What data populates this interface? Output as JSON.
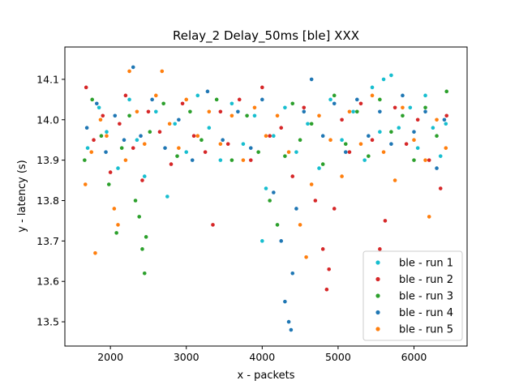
{
  "chart_data": {
    "type": "scatter",
    "title": "Relay_2 Delay_50ms [ble] XXX",
    "xlabel": "x - packets",
    "ylabel": "y - latency (s)",
    "xlim": [
      1400,
      6700
    ],
    "ylim": [
      13.44,
      14.18
    ],
    "xticks": [
      2000,
      3000,
      4000,
      5000,
      6000
    ],
    "yticks": [
      13.5,
      13.6,
      13.7,
      13.8,
      13.9,
      14.0,
      14.1
    ],
    "ytick_labels": [
      "13.5",
      "13.6",
      "13.7",
      "13.8",
      "13.9",
      "14.0",
      "14.1"
    ],
    "x_range": [
      1650,
      6450
    ],
    "legend_position": "lower right",
    "grid": false,
    "series": [
      {
        "name": "ble - run 1",
        "color": "#17becf",
        "points": [
          [
            1700,
            13.93
          ],
          [
            1850,
            14.03
          ],
          [
            1950,
            13.97
          ],
          [
            2100,
            13.88
          ],
          [
            2250,
            14.05
          ],
          [
            2350,
            13.95
          ],
          [
            2450,
            13.86
          ],
          [
            2600,
            14.02
          ],
          [
            2750,
            13.81
          ],
          [
            2850,
            13.99
          ],
          [
            3000,
            13.92
          ],
          [
            3150,
            14.06
          ],
          [
            3300,
            13.98
          ],
          [
            3450,
            13.9
          ],
          [
            3600,
            14.04
          ],
          [
            3750,
            13.94
          ],
          [
            3900,
            14.01
          ],
          [
            4000,
            13.7
          ],
          [
            4050,
            13.83
          ],
          [
            4150,
            13.96
          ],
          [
            4300,
            14.03
          ],
          [
            4450,
            13.92
          ],
          [
            4600,
            13.99
          ],
          [
            4750,
            13.88
          ],
          [
            4900,
            14.05
          ],
          [
            5050,
            13.95
          ],
          [
            5200,
            14.02
          ],
          [
            5350,
            13.9
          ],
          [
            5450,
            14.08
          ],
          [
            5550,
            13.97
          ],
          [
            5600,
            14.1
          ],
          [
            5700,
            14.11
          ],
          [
            5800,
            13.98
          ],
          [
            5950,
            14.03
          ],
          [
            6050,
            13.93
          ],
          [
            6150,
            14.06
          ],
          [
            6250,
            13.98
          ],
          [
            6350,
            13.91
          ],
          [
            6420,
            13.99
          ]
        ]
      },
      {
        "name": "ble - run 2",
        "color": "#d62728",
        "points": [
          [
            1680,
            14.08
          ],
          [
            1780,
            13.95
          ],
          [
            1900,
            14.01
          ],
          [
            2000,
            13.87
          ],
          [
            2120,
            13.99
          ],
          [
            2200,
            14.06
          ],
          [
            2300,
            13.93
          ],
          [
            2420,
            13.85
          ],
          [
            2500,
            14.02
          ],
          [
            2650,
            13.97
          ],
          [
            2800,
            13.89
          ],
          [
            2950,
            14.04
          ],
          [
            3100,
            13.96
          ],
          [
            3250,
            13.92
          ],
          [
            3350,
            13.74
          ],
          [
            3450,
            14.02
          ],
          [
            3550,
            13.94
          ],
          [
            3700,
            14.05
          ],
          [
            3850,
            13.9
          ],
          [
            4000,
            14.08
          ],
          [
            4100,
            13.96
          ],
          [
            4250,
            13.98
          ],
          [
            4400,
            13.86
          ],
          [
            4550,
            14.03
          ],
          [
            4700,
            13.8
          ],
          [
            4800,
            13.68
          ],
          [
            4850,
            13.58
          ],
          [
            4880,
            13.63
          ],
          [
            4950,
            13.78
          ],
          [
            5050,
            14.0
          ],
          [
            5150,
            13.92
          ],
          [
            5300,
            14.04
          ],
          [
            5450,
            13.95
          ],
          [
            5550,
            13.68
          ],
          [
            5620,
            13.75
          ],
          [
            5750,
            14.03
          ],
          [
            5900,
            13.94
          ],
          [
            6050,
            14.0
          ],
          [
            6200,
            13.9
          ],
          [
            6350,
            13.83
          ],
          [
            6430,
            14.01
          ]
        ]
      },
      {
        "name": "ble - run 3",
        "color": "#2ca02c",
        "points": [
          [
            1660,
            13.9
          ],
          [
            1760,
            14.05
          ],
          [
            1880,
            13.96
          ],
          [
            1980,
            13.84
          ],
          [
            2080,
            13.72
          ],
          [
            2150,
            13.93
          ],
          [
            2250,
            14.01
          ],
          [
            2330,
            13.8
          ],
          [
            2380,
            13.76
          ],
          [
            2420,
            13.68
          ],
          [
            2450,
            13.62
          ],
          [
            2470,
            13.71
          ],
          [
            2520,
            13.97
          ],
          [
            2700,
            14.04
          ],
          [
            2880,
            13.91
          ],
          [
            3050,
            14.02
          ],
          [
            3200,
            13.95
          ],
          [
            3400,
            14.05
          ],
          [
            3600,
            13.9
          ],
          [
            3800,
            14.01
          ],
          [
            3950,
            13.92
          ],
          [
            4100,
            13.8
          ],
          [
            4200,
            13.74
          ],
          [
            4300,
            13.91
          ],
          [
            4400,
            14.04
          ],
          [
            4500,
            13.95
          ],
          [
            4650,
            13.99
          ],
          [
            4800,
            13.89
          ],
          [
            4950,
            14.06
          ],
          [
            5100,
            13.94
          ],
          [
            5250,
            14.02
          ],
          [
            5400,
            13.91
          ],
          [
            5550,
            14.05
          ],
          [
            5700,
            13.97
          ],
          [
            5850,
            14.01
          ],
          [
            6000,
            13.9
          ],
          [
            6150,
            14.03
          ],
          [
            6300,
            13.96
          ],
          [
            6430,
            14.07
          ]
        ]
      },
      {
        "name": "ble - run 4",
        "color": "#1f77b4",
        "points": [
          [
            1690,
            13.98
          ],
          [
            1820,
            14.04
          ],
          [
            1940,
            13.92
          ],
          [
            2060,
            14.01
          ],
          [
            2180,
            13.95
          ],
          [
            2300,
            14.13
          ],
          [
            2400,
            13.96
          ],
          [
            2550,
            14.05
          ],
          [
            2720,
            13.93
          ],
          [
            2900,
            14.0
          ],
          [
            3080,
            13.9
          ],
          [
            3280,
            14.07
          ],
          [
            3480,
            13.95
          ],
          [
            3680,
            14.02
          ],
          [
            3850,
            13.93
          ],
          [
            4000,
            14.05
          ],
          [
            4150,
            13.82
          ],
          [
            4250,
            13.7
          ],
          [
            4300,
            13.55
          ],
          [
            4350,
            13.5
          ],
          [
            4380,
            13.48
          ],
          [
            4400,
            13.62
          ],
          [
            4450,
            13.78
          ],
          [
            4550,
            14.02
          ],
          [
            4650,
            14.1
          ],
          [
            4800,
            13.96
          ],
          [
            4950,
            14.04
          ],
          [
            5100,
            13.92
          ],
          [
            5250,
            14.05
          ],
          [
            5400,
            13.96
          ],
          [
            5550,
            14.02
          ],
          [
            5700,
            13.94
          ],
          [
            5850,
            14.06
          ],
          [
            6000,
            13.97
          ],
          [
            6150,
            14.02
          ],
          [
            6300,
            13.88
          ],
          [
            6400,
            14.0
          ]
        ]
      },
      {
        "name": "ble - run 5",
        "color": "#ff7f0e",
        "points": [
          [
            1670,
            13.84
          ],
          [
            1750,
            13.92
          ],
          [
            1800,
            13.67
          ],
          [
            1870,
            14.0
          ],
          [
            1950,
            13.96
          ],
          [
            2050,
            13.78
          ],
          [
            2100,
            13.74
          ],
          [
            2200,
            13.9
          ],
          [
            2250,
            14.12
          ],
          [
            2350,
            14.02
          ],
          [
            2450,
            13.94
          ],
          [
            2600,
            14.06
          ],
          [
            2680,
            14.12
          ],
          [
            2780,
            13.99
          ],
          [
            2900,
            13.93
          ],
          [
            3000,
            14.05
          ],
          [
            3150,
            13.96
          ],
          [
            3300,
            14.02
          ],
          [
            3450,
            13.94
          ],
          [
            3600,
            14.01
          ],
          [
            3750,
            13.9
          ],
          [
            3900,
            14.03
          ],
          [
            4050,
            13.96
          ],
          [
            4200,
            14.01
          ],
          [
            4350,
            13.92
          ],
          [
            4500,
            13.74
          ],
          [
            4580,
            13.66
          ],
          [
            4650,
            13.84
          ],
          [
            4750,
            14.01
          ],
          [
            4900,
            13.95
          ],
          [
            5050,
            13.86
          ],
          [
            5150,
            14.02
          ],
          [
            5300,
            13.94
          ],
          [
            5450,
            14.06
          ],
          [
            5600,
            13.92
          ],
          [
            5750,
            13.85
          ],
          [
            5850,
            14.03
          ],
          [
            6000,
            13.95
          ],
          [
            6150,
            13.9
          ],
          [
            6200,
            13.76
          ],
          [
            6300,
            14.0
          ],
          [
            6420,
            13.93
          ]
        ]
      }
    ]
  }
}
